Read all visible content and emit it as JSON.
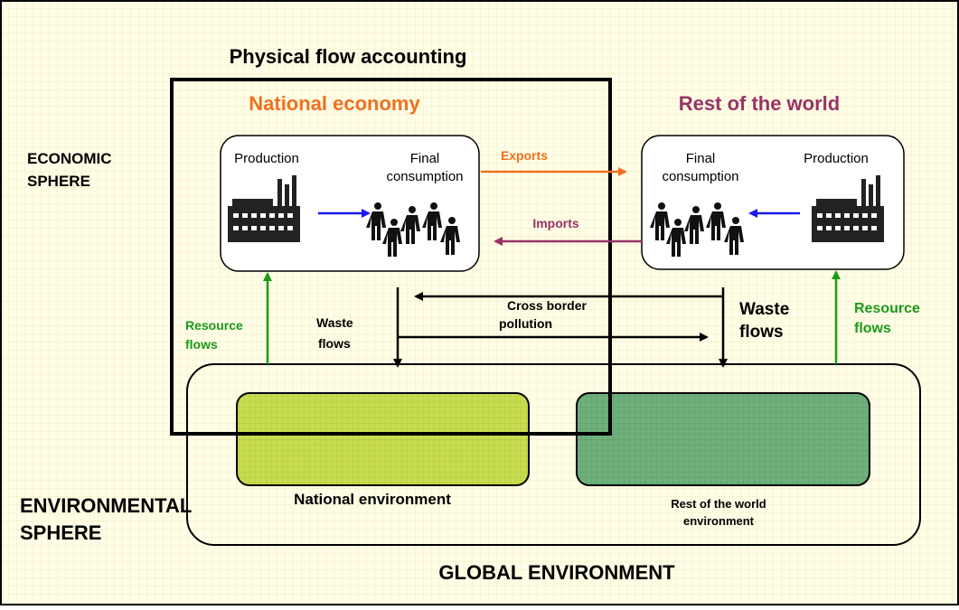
{
  "title": "Physical flow accounting",
  "national_economy": {
    "title": "National economy",
    "production": "Production",
    "final_consumption": [
      "Final",
      "consumption"
    ]
  },
  "rest_of_world": {
    "title": "Rest of the world",
    "production": "Production",
    "final_consumption": [
      "Final",
      "consumption"
    ]
  },
  "economic_sphere": [
    "ECONOMIC",
    "SPHERE"
  ],
  "flows": {
    "exports": "Exports",
    "imports": "Imports",
    "cross_border": [
      "Cross border",
      "pollution"
    ],
    "waste_national": [
      "Waste",
      "flows"
    ],
    "waste_rest": [
      "Waste",
      "flows"
    ],
    "resource_national": [
      "Resource",
      "flows"
    ],
    "resource_rest": [
      "Resource",
      "flows"
    ]
  },
  "environmental_sphere": [
    "ENVIRONMENTAL",
    "SPHERE"
  ],
  "national_environment": "National environment",
  "rest_environment": [
    "Rest of the world",
    "environment"
  ],
  "global_environment": "GLOBAL ENVIRONMENT"
}
